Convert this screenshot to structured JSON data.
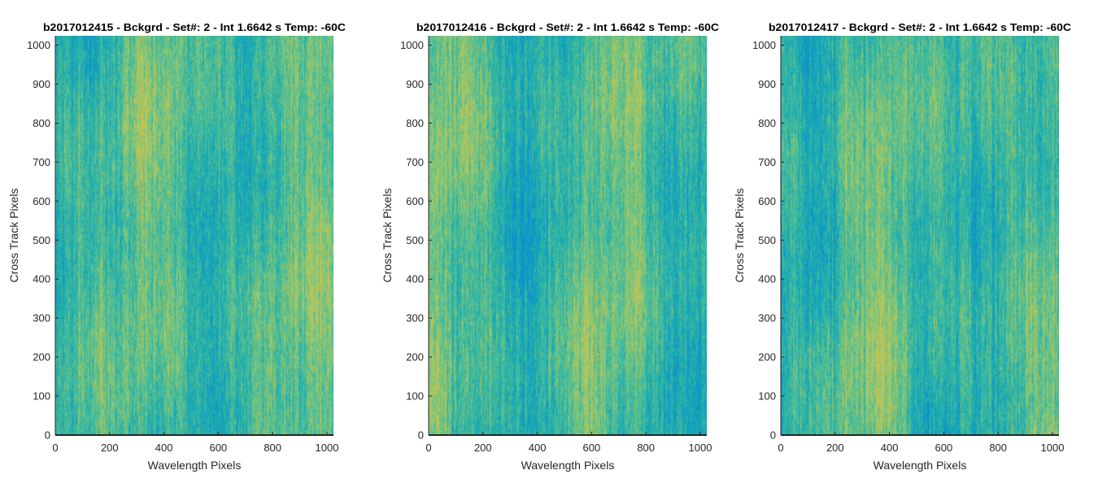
{
  "chart_data": [
    {
      "type": "heatmap",
      "title": "b2017012415 - Bckgrd - Set#: 2 - Int 1.6642 s Temp: -60C",
      "xlabel": "Wavelength Pixels",
      "ylabel": "Cross Track Pixels",
      "xlim": [
        0,
        1024
      ],
      "ylim": [
        0,
        1024
      ],
      "xticks": [
        0,
        200,
        400,
        600,
        800,
        1000
      ],
      "yticks": [
        0,
        100,
        200,
        300,
        400,
        500,
        600,
        700,
        800,
        900,
        1000
      ],
      "grid": false,
      "colormap": [
        "#0d8ed0",
        "#18aab3",
        "#4cbd97",
        "#9dc768",
        "#d6c150"
      ]
    },
    {
      "type": "heatmap",
      "title": "b2017012416 - Bckgrd - Set#: 2 - Int 1.6642 s Temp: -60C",
      "xlabel": "Wavelength Pixels",
      "ylabel": "Cross Track Pixels",
      "xlim": [
        0,
        1024
      ],
      "ylim": [
        0,
        1024
      ],
      "xticks": [
        0,
        200,
        400,
        600,
        800,
        1000
      ],
      "yticks": [
        0,
        100,
        200,
        300,
        400,
        500,
        600,
        700,
        800,
        900,
        1000
      ],
      "grid": false,
      "colormap": [
        "#0d8ed0",
        "#18aab3",
        "#4cbd97",
        "#9dc768",
        "#d6c150"
      ]
    },
    {
      "type": "heatmap",
      "title": "b2017012417 - Bckgrd - Set#: 2 - Int 1.6642 s Temp: -60C",
      "xlabel": "Wavelength Pixels",
      "ylabel": "Cross Track Pixels",
      "xlim": [
        0,
        1024
      ],
      "ylim": [
        0,
        1024
      ],
      "xticks": [
        0,
        200,
        400,
        600,
        800,
        1000
      ],
      "yticks": [
        0,
        100,
        200,
        300,
        400,
        500,
        600,
        700,
        800,
        900,
        1000
      ],
      "grid": false,
      "colormap": [
        "#0d8ed0",
        "#18aab3",
        "#4cbd97",
        "#9dc768",
        "#d6c150"
      ]
    }
  ]
}
